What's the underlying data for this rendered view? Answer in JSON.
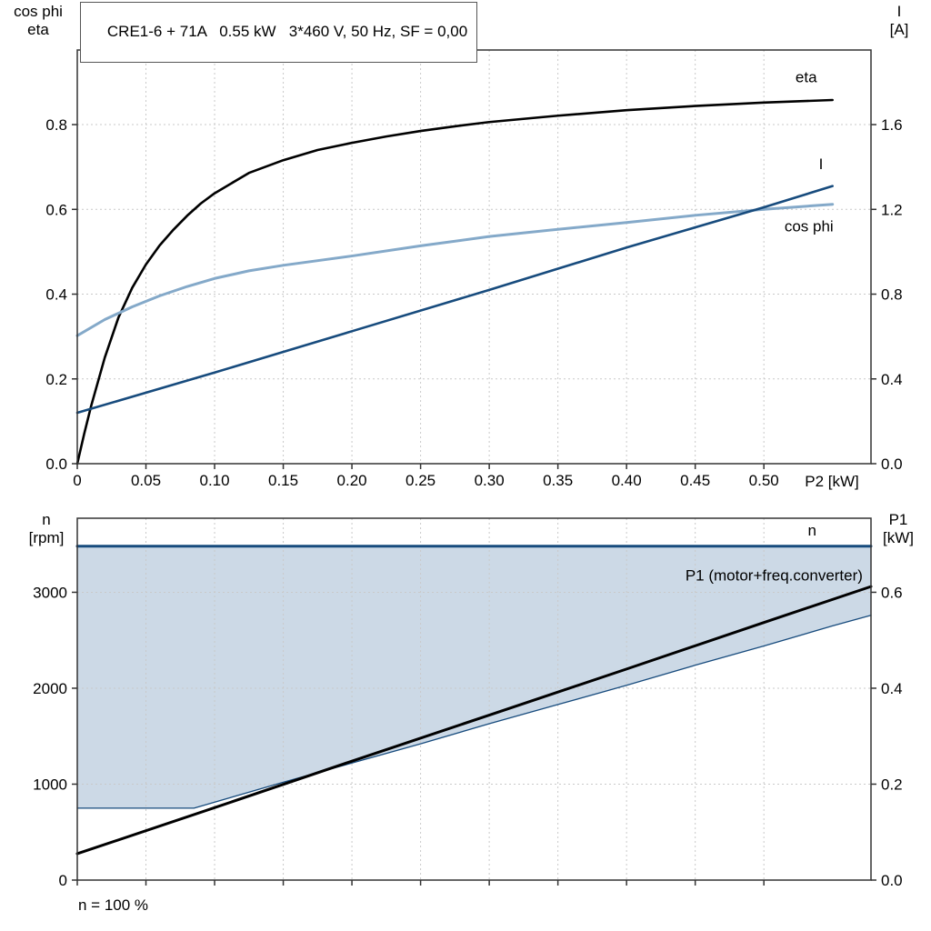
{
  "colors": {
    "grid": "#c9c9c9",
    "frame": "#333333",
    "black": "#000000",
    "dark_blue": "#174b7d",
    "light_blue": "#84a9c9",
    "fill_blue": "#ccd9e6"
  },
  "chart_data": [
    {
      "id": "top",
      "type": "line",
      "title": "CRE1-6 + 71A   0.55 kW   3*460 V, 50 Hz, SF = 0,00",
      "x_axis": {
        "label": "P2 [kW]",
        "lim": [
          0,
          0.578
        ],
        "ticks": [
          {
            "v": 0,
            "label": "0"
          },
          {
            "v": 0.05,
            "label": "0.05"
          },
          {
            "v": 0.1,
            "label": "0.10"
          },
          {
            "v": 0.15,
            "label": "0.15"
          },
          {
            "v": 0.2,
            "label": "0.20"
          },
          {
            "v": 0.25,
            "label": "0.25"
          },
          {
            "v": 0.3,
            "label": "0.30"
          },
          {
            "v": 0.35,
            "label": "0.35"
          },
          {
            "v": 0.4,
            "label": "0.40"
          },
          {
            "v": 0.45,
            "label": "0.45"
          },
          {
            "v": 0.5,
            "label": "0.50"
          }
        ]
      },
      "left_axis": {
        "label_lines": [
          "cos phi",
          "eta"
        ],
        "lim": [
          0,
          0.976
        ],
        "ticks": [
          {
            "v": 0,
            "label": "0.0"
          },
          {
            "v": 0.2,
            "label": "0.2"
          },
          {
            "v": 0.4,
            "label": "0.4"
          },
          {
            "v": 0.6,
            "label": "0.6"
          },
          {
            "v": 0.8,
            "label": "0.8"
          }
        ]
      },
      "right_axis": {
        "label_lines": [
          "I",
          "[A]"
        ],
        "lim": [
          0,
          1.952
        ],
        "ticks": [
          {
            "v": 0,
            "label": "0.0"
          },
          {
            "v": 0.4,
            "label": "0.4"
          },
          {
            "v": 0.8,
            "label": "0.8"
          },
          {
            "v": 1.2,
            "label": "1.2"
          },
          {
            "v": 1.6,
            "label": "1.6"
          }
        ]
      },
      "series": [
        {
          "name": "eta",
          "axis": "left",
          "color": "#000000",
          "width": 2.6,
          "label": "eta",
          "label_at": [
            0.523,
            0.9
          ],
          "points": [
            [
              0,
              0
            ],
            [
              0.005,
              0.07
            ],
            [
              0.01,
              0.135
            ],
            [
              0.02,
              0.25
            ],
            [
              0.03,
              0.345
            ],
            [
              0.04,
              0.415
            ],
            [
              0.05,
              0.47
            ],
            [
              0.06,
              0.515
            ],
            [
              0.07,
              0.552
            ],
            [
              0.08,
              0.585
            ],
            [
              0.09,
              0.614
            ],
            [
              0.1,
              0.638
            ],
            [
              0.125,
              0.686
            ],
            [
              0.15,
              0.716
            ],
            [
              0.175,
              0.74
            ],
            [
              0.2,
              0.757
            ],
            [
              0.225,
              0.772
            ],
            [
              0.25,
              0.785
            ],
            [
              0.275,
              0.796
            ],
            [
              0.3,
              0.806
            ],
            [
              0.35,
              0.821
            ],
            [
              0.4,
              0.834
            ],
            [
              0.45,
              0.844
            ],
            [
              0.5,
              0.852
            ],
            [
              0.55,
              0.858
            ]
          ]
        },
        {
          "name": "cos-phi",
          "axis": "left",
          "color": "#84a9c9",
          "width": 3,
          "label": "cos phi",
          "label_at": [
            0.515,
            0.548
          ],
          "points": [
            [
              0,
              0.302
            ],
            [
              0.02,
              0.34
            ],
            [
              0.04,
              0.37
            ],
            [
              0.06,
              0.396
            ],
            [
              0.08,
              0.418
            ],
            [
              0.1,
              0.437
            ],
            [
              0.125,
              0.455
            ],
            [
              0.15,
              0.468
            ],
            [
              0.175,
              0.479
            ],
            [
              0.2,
              0.49
            ],
            [
              0.25,
              0.514
            ],
            [
              0.3,
              0.536
            ],
            [
              0.35,
              0.553
            ],
            [
              0.4,
              0.569
            ],
            [
              0.45,
              0.586
            ],
            [
              0.5,
              0.6
            ],
            [
              0.55,
              0.612
            ]
          ]
        },
        {
          "name": "current",
          "axis": "right",
          "color": "#174b7d",
          "width": 2.6,
          "label": "I",
          "label_at": [
            0.54,
            1.39
          ],
          "points": [
            [
              0,
              0.24
            ],
            [
              0.1,
              0.43
            ],
            [
              0.2,
              0.625
            ],
            [
              0.3,
              0.82
            ],
            [
              0.4,
              1.02
            ],
            [
              0.5,
              1.21
            ],
            [
              0.55,
              1.31
            ]
          ]
        }
      ]
    },
    {
      "id": "bottom",
      "type": "line",
      "footnote": "n = 100 %",
      "x_axis": {
        "label": "",
        "lim": [
          0,
          0.578
        ],
        "ticks": [
          {
            "v": 0,
            "label": ""
          },
          {
            "v": 0.05,
            "label": ""
          },
          {
            "v": 0.1,
            "label": ""
          },
          {
            "v": 0.15,
            "label": ""
          },
          {
            "v": 0.2,
            "label": ""
          },
          {
            "v": 0.25,
            "label": ""
          },
          {
            "v": 0.3,
            "label": ""
          },
          {
            "v": 0.35,
            "label": ""
          },
          {
            "v": 0.4,
            "label": ""
          },
          {
            "v": 0.45,
            "label": ""
          },
          {
            "v": 0.5,
            "label": ""
          }
        ]
      },
      "left_axis": {
        "label_lines": [
          "n",
          "[rpm]"
        ],
        "lim": [
          0,
          3772
        ],
        "ticks": [
          {
            "v": 0,
            "label": "0"
          },
          {
            "v": 1000,
            "label": "1000"
          },
          {
            "v": 2000,
            "label": "2000"
          },
          {
            "v": 3000,
            "label": "3000"
          }
        ]
      },
      "right_axis": {
        "label_lines": [
          "P1",
          "[kW]"
        ],
        "lim": [
          0,
          0.7544
        ],
        "ticks": [
          {
            "v": 0,
            "label": "0.0"
          },
          {
            "v": 0.2,
            "label": "0.2"
          },
          {
            "v": 0.4,
            "label": "0.4"
          },
          {
            "v": 0.6,
            "label": "0.6"
          }
        ]
      },
      "fill_between": {
        "upper": "n",
        "lower": "min-speed",
        "color": "#ccd9e6"
      },
      "series": [
        {
          "name": "n",
          "axis": "left",
          "color": "#174b7d",
          "width": 3,
          "label": "n",
          "label_at": [
            0.532,
            3590
          ],
          "points": [
            [
              0,
              3480
            ],
            [
              0.578,
              3480
            ]
          ]
        },
        {
          "name": "min-speed",
          "axis": "left",
          "color": "#174b7d",
          "width": 1.3,
          "label": "",
          "points": [
            [
              0,
              750
            ],
            [
              0.085,
              750
            ],
            [
              0.15,
              1020
            ],
            [
              0.2,
              1220
            ],
            [
              0.25,
              1420
            ],
            [
              0.3,
              1630
            ],
            [
              0.35,
              1830
            ],
            [
              0.4,
              2030
            ],
            [
              0.45,
              2240
            ],
            [
              0.5,
              2440
            ],
            [
              0.55,
              2650
            ],
            [
              0.578,
              2760
            ]
          ]
        },
        {
          "name": "p1",
          "axis": "right",
          "color": "#000000",
          "width": 3,
          "label": "P1 (motor+freq.converter)",
          "label_anchor": "end",
          "label_at": [
            0.572,
            0.625
          ],
          "points": [
            [
              0,
              0.055
            ],
            [
              0.1,
              0.151
            ],
            [
              0.2,
              0.248
            ],
            [
              0.3,
              0.344
            ],
            [
              0.4,
              0.44
            ],
            [
              0.5,
              0.537
            ],
            [
              0.578,
              0.612
            ]
          ]
        }
      ]
    }
  ]
}
